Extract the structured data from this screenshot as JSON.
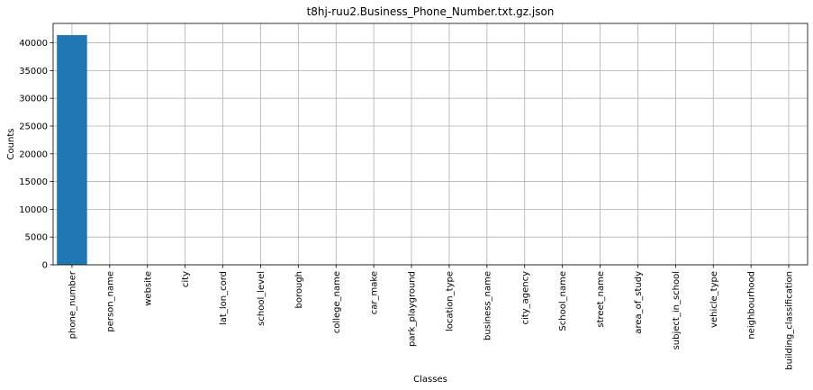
{
  "chart_data": {
    "type": "bar",
    "title": "t8hj-ruu2.Business_Phone_Number.txt.gz.json",
    "xlabel": "Classes",
    "ylabel": "Counts",
    "categories": [
      "phone_number",
      "person_name",
      "website",
      "city",
      "lat_lon_cord",
      "school_level",
      "borough",
      "college_name",
      "car_make",
      "park_playground",
      "location_type",
      "business_name",
      "city_agency",
      "School_name",
      "street_name",
      "area_of_study",
      "subject_in_school",
      "vehicle_type",
      "neighbourhood",
      "building_classification"
    ],
    "values": [
      41400,
      0,
      0,
      0,
      0,
      0,
      0,
      0,
      0,
      0,
      0,
      0,
      0,
      0,
      0,
      0,
      0,
      0,
      0,
      0
    ],
    "ylim": [
      0,
      43500
    ],
    "yticks": [
      0,
      5000,
      10000,
      15000,
      20000,
      25000,
      30000,
      35000,
      40000
    ],
    "grid": true,
    "bar_color": "#1f77b4"
  }
}
